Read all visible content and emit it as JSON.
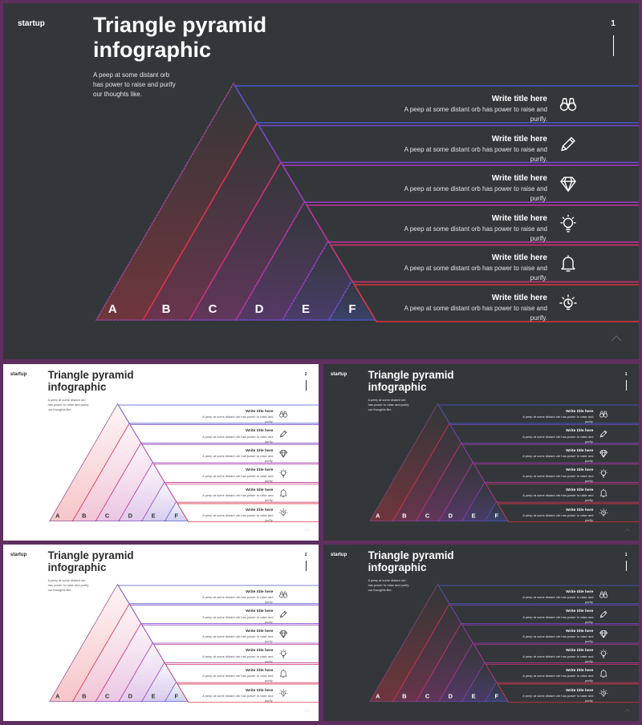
{
  "brand": "startup",
  "title_line1": "Triangle pyramid",
  "title_line2": "infographic",
  "subtitle_line1": "A peep at some distant orb",
  "subtitle_line2": "has power to raise and purify",
  "subtitle_line3": "our thoughts like.",
  "row_title": "Write title here",
  "row_desc_line1": "A peep at some distant orb has power to raise and",
  "row_desc_line2": "purify.",
  "letters": [
    "A",
    "B",
    "C",
    "D",
    "E",
    "F"
  ],
  "icons": [
    "binoculars-icon",
    "pencil-icon",
    "diamond-icon",
    "lightbulb-icon",
    "bell-icon",
    "idea-bulb-icon"
  ],
  "colors": {
    "frame": "#5e2f5f",
    "dark_bg": "#33373a",
    "light_bg": "#ffffff",
    "blue": "#4c55c8",
    "purple": "#8b3fc0",
    "magenta": "#c2308e",
    "red": "#e0323f"
  },
  "slides": [
    {
      "theme": "dark",
      "page": "1"
    },
    {
      "theme": "light",
      "page": "2"
    },
    {
      "theme": "dark",
      "page": "1"
    },
    {
      "theme": "light",
      "page": "2"
    },
    {
      "theme": "dark",
      "page": "1"
    }
  ]
}
